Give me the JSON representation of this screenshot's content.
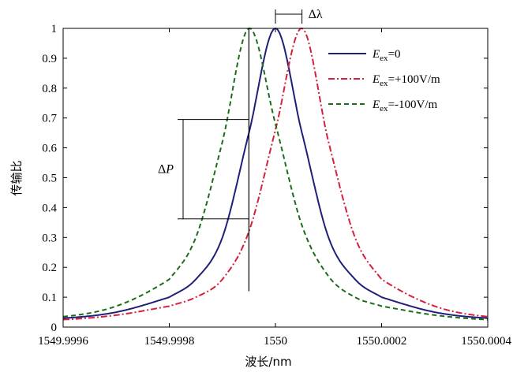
{
  "chart_data": {
    "type": "line",
    "xlabel": "波长/nm",
    "ylabel": "传输比",
    "xlim": [
      1549.9996,
      1550.0004
    ],
    "ylim": [
      0,
      1
    ],
    "x_ticks": [
      "1549.9996",
      "1549.9998",
      "1550",
      "1550.0002",
      "1550.0004"
    ],
    "y_ticks": [
      "0",
      "0.1",
      "0.2",
      "0.3",
      "0.4",
      "0.5",
      "0.6",
      "0.7",
      "0.8",
      "0.9",
      "1"
    ],
    "grid": false,
    "legend_position": "top-right",
    "series": [
      {
        "name_main": "E",
        "name_sub": "ex",
        "name_rest": "=0",
        "color": "#1f1f7a",
        "style": "solid",
        "x": [
          1549.9996,
          1549.9997,
          1549.9998,
          1549.99985,
          1549.9999,
          1549.99995,
          1550.0,
          1550.00005,
          1550.0001,
          1550.00015,
          1550.0002,
          1550.0003,
          1550.0004
        ],
        "values": [
          0.03,
          0.05,
          0.1,
          0.16,
          0.3,
          0.65,
          1.0,
          0.65,
          0.3,
          0.16,
          0.1,
          0.05,
          0.03
        ]
      },
      {
        "name_main": "E",
        "name_sub": "ex",
        "name_rest": "=+100V/m",
        "color": "#d4203c",
        "style": "dashdot",
        "x": [
          1549.9996,
          1549.9997,
          1549.9998,
          1549.99985,
          1549.9999,
          1549.99995,
          1550.0,
          1550.00005,
          1550.0001,
          1550.00015,
          1550.0002,
          1550.0003,
          1550.0004
        ],
        "values": [
          0.025,
          0.04,
          0.07,
          0.1,
          0.16,
          0.32,
          0.66,
          1.0,
          0.62,
          0.3,
          0.16,
          0.07,
          0.035
        ]
      },
      {
        "name_main": "E",
        "name_sub": "ex",
        "name_rest": "=-100V/m",
        "color": "#1a6e1a",
        "style": "dashed",
        "x": [
          1549.9996,
          1549.9997,
          1549.9998,
          1549.99985,
          1549.9999,
          1549.99995,
          1550.0,
          1550.00005,
          1550.0001,
          1550.00015,
          1550.0002,
          1550.0003,
          1550.0004
        ],
        "values": [
          0.035,
          0.07,
          0.16,
          0.3,
          0.62,
          1.0,
          0.68,
          0.34,
          0.17,
          0.1,
          0.07,
          0.04,
          0.025
        ]
      }
    ],
    "annotations": {
      "delta_lambda": "Δλ",
      "delta_p_main": "Δ",
      "delta_p_italic": "P"
    }
  }
}
